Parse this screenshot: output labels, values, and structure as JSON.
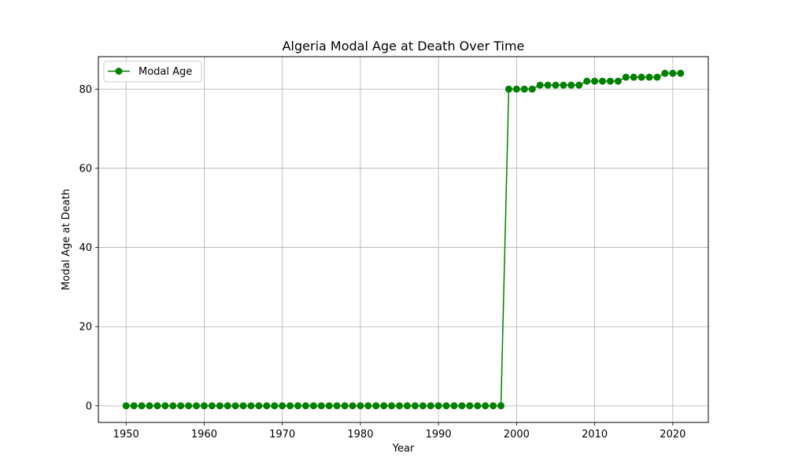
{
  "chart_data": {
    "type": "line",
    "title": "Algeria Modal Age at Death Over Time",
    "xlabel": "Year",
    "ylabel": "Modal Age at Death",
    "xlim": [
      1946.45,
      2024.55
    ],
    "ylim": [
      -4.2,
      88.2
    ],
    "xticks": [
      1950,
      1960,
      1970,
      1980,
      1990,
      2000,
      2010,
      2020
    ],
    "yticks": [
      0,
      20,
      40,
      60,
      80
    ],
    "grid": true,
    "legend": {
      "position": "top-left"
    },
    "series": [
      {
        "name": "Modal Age",
        "color": "#008000",
        "marker": "circle",
        "x": [
          1950,
          1951,
          1952,
          1953,
          1954,
          1955,
          1956,
          1957,
          1958,
          1959,
          1960,
          1961,
          1962,
          1963,
          1964,
          1965,
          1966,
          1967,
          1968,
          1969,
          1970,
          1971,
          1972,
          1973,
          1974,
          1975,
          1976,
          1977,
          1978,
          1979,
          1980,
          1981,
          1982,
          1983,
          1984,
          1985,
          1986,
          1987,
          1988,
          1989,
          1990,
          1991,
          1992,
          1993,
          1994,
          1995,
          1996,
          1997,
          1998,
          1999,
          2000,
          2001,
          2002,
          2003,
          2004,
          2005,
          2006,
          2007,
          2008,
          2009,
          2010,
          2011,
          2012,
          2013,
          2014,
          2015,
          2016,
          2017,
          2018,
          2019,
          2020,
          2021
        ],
        "values": [
          0,
          0,
          0,
          0,
          0,
          0,
          0,
          0,
          0,
          0,
          0,
          0,
          0,
          0,
          0,
          0,
          0,
          0,
          0,
          0,
          0,
          0,
          0,
          0,
          0,
          0,
          0,
          0,
          0,
          0,
          0,
          0,
          0,
          0,
          0,
          0,
          0,
          0,
          0,
          0,
          0,
          0,
          0,
          0,
          0,
          0,
          0,
          0,
          0,
          80,
          80,
          80,
          80,
          81,
          81,
          81,
          81,
          81,
          81,
          82,
          82,
          82,
          82,
          82,
          83,
          83,
          83,
          83,
          83,
          84,
          84,
          84
        ]
      }
    ]
  }
}
